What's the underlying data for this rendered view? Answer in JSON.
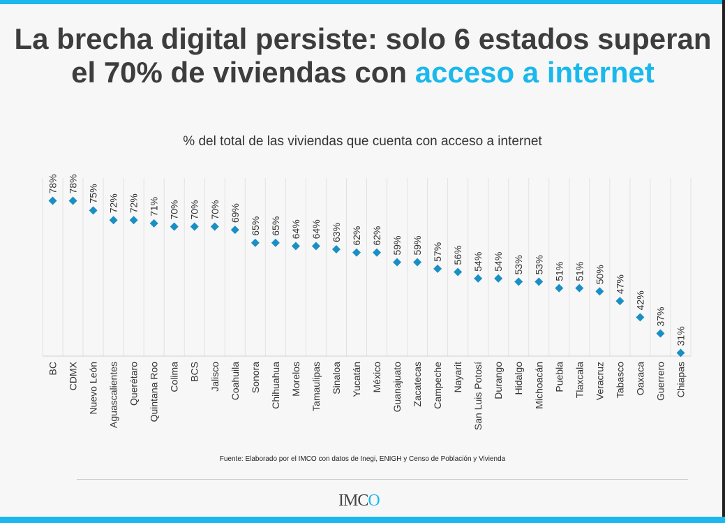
{
  "title": {
    "part1": "La brecha digital persiste: solo 6 estados superan el 70% de viviendas con ",
    "highlight": "acceso a internet"
  },
  "colors": {
    "accent": "#1ab8ec",
    "marker": "#1a8fc4",
    "title": "#3d3d3d"
  },
  "source": "Fuente: Elaborado por el IMCO con datos de Inegi, ENIGH y Censo de Población y Vivienda",
  "logo": "IMCO",
  "chart_data": {
    "type": "scatter",
    "title": "",
    "subtitle": "% del total de las viviendas que cuenta con acceso a internet",
    "marker": "diamond",
    "categories": [
      "BC",
      "CDMX",
      "Nuevo León",
      "Aguascalientes",
      "Querétaro",
      "Quintana Roo",
      "Colima",
      "BCS",
      "Jalisco",
      "Coahuila",
      "Sonora",
      "Chihuahua",
      "Morelos",
      "Tamaulipas",
      "Sinaloa",
      "Yucatán",
      "México",
      "Guanajuato",
      "Zacatecas",
      "Campeche",
      "Nayarit",
      "San Luis Potosí",
      "Durango",
      "Hidalgo",
      "Michoacán",
      "Puebla",
      "Tlaxcala",
      "Veracruz",
      "Tabasco",
      "Oaxaca",
      "Guerrero",
      "Chiapas"
    ],
    "values": [
      78,
      78,
      75,
      72,
      72,
      71,
      70,
      70,
      70,
      69,
      65,
      65,
      64,
      64,
      63,
      62,
      62,
      59,
      59,
      57,
      56,
      54,
      54,
      53,
      53,
      51,
      51,
      50,
      47,
      42,
      37,
      31
    ],
    "labels": [
      "78%",
      "78%",
      "75%",
      "72%",
      "72%",
      "71%",
      "70%",
      "70%",
      "70%",
      "69%",
      "65%",
      "65%",
      "64%",
      "64%",
      "63%",
      "62%",
      "62%",
      "59%",
      "59%",
      "57%",
      "56%",
      "54%",
      "54%",
      "53%",
      "53%",
      "51%",
      "51%",
      "50%",
      "47%",
      "42%",
      "37%",
      "31%"
    ],
    "ylim": [
      30,
      85
    ],
    "grid": "vertical",
    "legend": "none"
  }
}
